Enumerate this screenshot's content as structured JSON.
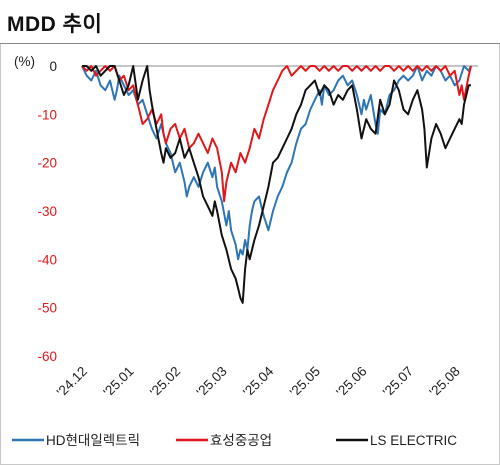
{
  "page": {
    "title": "MDD 추이"
  },
  "chart_data": {
    "type": "line",
    "title": "MDD 추이",
    "ylabel": "(%)",
    "xlabel": "",
    "ylim": [
      -60,
      0
    ],
    "yticks": [
      "0",
      "-10",
      "-20",
      "-30",
      "-40",
      "-50",
      "-60"
    ],
    "ytick_values": [
      0,
      -10,
      -20,
      -30,
      -40,
      -50,
      -60
    ],
    "x_range": [
      0,
      8.5
    ],
    "x_ticks": [
      "'24.12",
      "'25.01",
      "'25.02",
      "'25.03",
      "'25.04",
      "'25.05",
      "'25.06",
      "'25.07",
      "'25.08"
    ],
    "x_tick_values": [
      0,
      1,
      2,
      3,
      4,
      5,
      6,
      7,
      8
    ],
    "grid": false,
    "legend_position": "bottom",
    "series": [
      {
        "name": "HD현대일렉트릭",
        "color": "#2e75b6",
        "points": [
          [
            0,
            0
          ],
          [
            0.1,
            -2
          ],
          [
            0.2,
            -3
          ],
          [
            0.3,
            -1
          ],
          [
            0.4,
            -4
          ],
          [
            0.5,
            -5
          ],
          [
            0.6,
            -3
          ],
          [
            0.7,
            -7
          ],
          [
            0.75,
            -5
          ],
          [
            0.8,
            -2
          ],
          [
            0.9,
            -4
          ],
          [
            1.0,
            -6
          ],
          [
            1.1,
            -5
          ],
          [
            1.2,
            -8
          ],
          [
            1.3,
            -7
          ],
          [
            1.4,
            -10
          ],
          [
            1.5,
            -13
          ],
          [
            1.6,
            -15
          ],
          [
            1.7,
            -12
          ],
          [
            1.75,
            -14
          ],
          [
            1.8,
            -16
          ],
          [
            1.9,
            -18
          ],
          [
            2.0,
            -22
          ],
          [
            2.1,
            -20
          ],
          [
            2.2,
            -24
          ],
          [
            2.25,
            -27
          ],
          [
            2.3,
            -25
          ],
          [
            2.4,
            -23
          ],
          [
            2.5,
            -25
          ],
          [
            2.6,
            -22
          ],
          [
            2.7,
            -20
          ],
          [
            2.8,
            -23
          ],
          [
            2.85,
            -21
          ],
          [
            2.9,
            -25
          ],
          [
            3.0,
            -28
          ],
          [
            3.1,
            -33
          ],
          [
            3.15,
            -30
          ],
          [
            3.2,
            -34
          ],
          [
            3.3,
            -37
          ],
          [
            3.35,
            -40
          ],
          [
            3.4,
            -38
          ],
          [
            3.45,
            -39
          ],
          [
            3.5,
            -36
          ],
          [
            3.55,
            -38
          ],
          [
            3.6,
            -33
          ],
          [
            3.65,
            -30
          ],
          [
            3.7,
            -28
          ],
          [
            3.8,
            -27
          ],
          [
            3.9,
            -31
          ],
          [
            4.0,
            -34
          ],
          [
            4.1,
            -30
          ],
          [
            4.2,
            -27
          ],
          [
            4.3,
            -25
          ],
          [
            4.4,
            -22
          ],
          [
            4.5,
            -20
          ],
          [
            4.6,
            -16
          ],
          [
            4.7,
            -13
          ],
          [
            4.8,
            -12
          ],
          [
            4.9,
            -9
          ],
          [
            5.0,
            -7
          ],
          [
            5.1,
            -5
          ],
          [
            5.15,
            -8
          ],
          [
            5.2,
            -4
          ],
          [
            5.3,
            -6
          ],
          [
            5.4,
            -5
          ],
          [
            5.5,
            -3
          ],
          [
            5.6,
            -2
          ],
          [
            5.7,
            -4
          ],
          [
            5.8,
            -3
          ],
          [
            5.9,
            -6
          ],
          [
            6.0,
            -10
          ],
          [
            6.05,
            -7
          ],
          [
            6.1,
            -9
          ],
          [
            6.2,
            -6
          ],
          [
            6.3,
            -12
          ],
          [
            6.35,
            -14
          ],
          [
            6.4,
            -9
          ],
          [
            6.5,
            -10
          ],
          [
            6.6,
            -6
          ],
          [
            6.7,
            -5
          ],
          [
            6.8,
            -3
          ],
          [
            6.9,
            -2
          ],
          [
            7.0,
            -3
          ],
          [
            7.1,
            -2
          ],
          [
            7.2,
            0
          ],
          [
            7.3,
            -3
          ],
          [
            7.4,
            -1
          ],
          [
            7.5,
            -2
          ],
          [
            7.6,
            0
          ],
          [
            7.7,
            -1
          ],
          [
            7.8,
            -3
          ],
          [
            7.9,
            -2
          ],
          [
            8.0,
            -4
          ],
          [
            8.1,
            -3
          ],
          [
            8.2,
            0
          ],
          [
            8.3,
            -1
          ],
          [
            8.35,
            0
          ]
        ]
      },
      {
        "name": "효성중공업",
        "color": "#e0181b",
        "points": [
          [
            0,
            0
          ],
          [
            0.1,
            -1
          ],
          [
            0.2,
            0
          ],
          [
            0.3,
            -2
          ],
          [
            0.4,
            -1
          ],
          [
            0.5,
            0
          ],
          [
            0.6,
            -1
          ],
          [
            0.7,
            0
          ],
          [
            0.8,
            -3
          ],
          [
            0.9,
            -2
          ],
          [
            1.0,
            -5
          ],
          [
            1.1,
            -4
          ],
          [
            1.2,
            -8
          ],
          [
            1.3,
            -12
          ],
          [
            1.4,
            -11
          ],
          [
            1.5,
            -9
          ],
          [
            1.6,
            -12
          ],
          [
            1.7,
            -10
          ],
          [
            1.75,
            -14
          ],
          [
            1.8,
            -16
          ],
          [
            1.9,
            -13
          ],
          [
            2.0,
            -12
          ],
          [
            2.1,
            -15
          ],
          [
            2.2,
            -13
          ],
          [
            2.3,
            -17
          ],
          [
            2.4,
            -16
          ],
          [
            2.5,
            -14
          ],
          [
            2.6,
            -16
          ],
          [
            2.7,
            -18
          ],
          [
            2.8,
            -15
          ],
          [
            2.9,
            -17
          ],
          [
            3.0,
            -22
          ],
          [
            3.05,
            -28
          ],
          [
            3.1,
            -24
          ],
          [
            3.2,
            -20
          ],
          [
            3.3,
            -22
          ],
          [
            3.4,
            -18
          ],
          [
            3.5,
            -20
          ],
          [
            3.6,
            -17
          ],
          [
            3.7,
            -13
          ],
          [
            3.8,
            -15
          ],
          [
            3.9,
            -11
          ],
          [
            4.0,
            -8
          ],
          [
            4.1,
            -5
          ],
          [
            4.2,
            -3
          ],
          [
            4.3,
            -1
          ],
          [
            4.4,
            0
          ],
          [
            4.5,
            -2
          ],
          [
            4.6,
            -1
          ],
          [
            4.7,
            0
          ],
          [
            4.8,
            -1
          ],
          [
            4.9,
            0
          ],
          [
            5.0,
            0
          ],
          [
            5.1,
            -1
          ],
          [
            5.2,
            0
          ],
          [
            5.3,
            -1
          ],
          [
            5.4,
            0
          ],
          [
            5.5,
            -1
          ],
          [
            5.6,
            0
          ],
          [
            5.7,
            0
          ],
          [
            5.8,
            -1
          ],
          [
            5.9,
            0
          ],
          [
            6.0,
            -1
          ],
          [
            6.1,
            0
          ],
          [
            6.2,
            -1
          ],
          [
            6.3,
            0
          ],
          [
            6.4,
            -1
          ],
          [
            6.5,
            0
          ],
          [
            6.6,
            0
          ],
          [
            6.7,
            -1
          ],
          [
            6.8,
            0
          ],
          [
            6.9,
            -1
          ],
          [
            7.0,
            0
          ],
          [
            7.1,
            -1
          ],
          [
            7.2,
            0
          ],
          [
            7.3,
            -1
          ],
          [
            7.4,
            0
          ],
          [
            7.5,
            -1
          ],
          [
            7.6,
            0
          ],
          [
            7.7,
            -1
          ],
          [
            7.8,
            0
          ],
          [
            7.9,
            -2
          ],
          [
            8.0,
            -1
          ],
          [
            8.1,
            -6
          ],
          [
            8.15,
            -4
          ],
          [
            8.2,
            -7
          ],
          [
            8.3,
            -2
          ],
          [
            8.35,
            0
          ]
        ]
      },
      {
        "name": "LS ELECTRIC",
        "color": "#111111",
        "points": [
          [
            0,
            0
          ],
          [
            0.1,
            0
          ],
          [
            0.2,
            -1
          ],
          [
            0.3,
            0
          ],
          [
            0.4,
            -2
          ],
          [
            0.5,
            -1
          ],
          [
            0.6,
            0
          ],
          [
            0.7,
            0
          ],
          [
            0.8,
            -3
          ],
          [
            0.9,
            -6
          ],
          [
            1.0,
            -4
          ],
          [
            1.1,
            0
          ],
          [
            1.2,
            -7
          ],
          [
            1.3,
            -3
          ],
          [
            1.4,
            0
          ],
          [
            1.45,
            -5
          ],
          [
            1.5,
            -8
          ],
          [
            1.6,
            -13
          ],
          [
            1.7,
            -18
          ],
          [
            1.75,
            -20
          ],
          [
            1.8,
            -17
          ],
          [
            1.9,
            -19
          ],
          [
            2.0,
            -18
          ],
          [
            2.1,
            -15
          ],
          [
            2.2,
            -19
          ],
          [
            2.3,
            -17
          ],
          [
            2.4,
            -20
          ],
          [
            2.5,
            -23
          ],
          [
            2.6,
            -27
          ],
          [
            2.7,
            -29
          ],
          [
            2.8,
            -31
          ],
          [
            2.85,
            -28
          ],
          [
            2.9,
            -30
          ],
          [
            3.0,
            -35
          ],
          [
            3.1,
            -38
          ],
          [
            3.2,
            -42
          ],
          [
            3.3,
            -44
          ],
          [
            3.35,
            -46
          ],
          [
            3.4,
            -48
          ],
          [
            3.45,
            -49
          ],
          [
            3.5,
            -42
          ],
          [
            3.55,
            -38
          ],
          [
            3.6,
            -40
          ],
          [
            3.7,
            -36
          ],
          [
            3.8,
            -33
          ],
          [
            3.9,
            -29
          ],
          [
            4.0,
            -25
          ],
          [
            4.1,
            -20
          ],
          [
            4.2,
            -19
          ],
          [
            4.3,
            -17
          ],
          [
            4.4,
            -15
          ],
          [
            4.5,
            -13
          ],
          [
            4.6,
            -10
          ],
          [
            4.7,
            -8
          ],
          [
            4.8,
            -5
          ],
          [
            4.9,
            -4
          ],
          [
            5.0,
            -3
          ],
          [
            5.1,
            -6
          ],
          [
            5.2,
            -4
          ],
          [
            5.3,
            -5
          ],
          [
            5.4,
            -8
          ],
          [
            5.5,
            -6
          ],
          [
            5.6,
            -7
          ],
          [
            5.7,
            -5
          ],
          [
            5.8,
            -4
          ],
          [
            5.9,
            -9
          ],
          [
            6.0,
            -15
          ],
          [
            6.1,
            -11
          ],
          [
            6.2,
            -13
          ],
          [
            6.3,
            -14
          ],
          [
            6.4,
            -7
          ],
          [
            6.5,
            -10
          ],
          [
            6.6,
            -8
          ],
          [
            6.7,
            -3
          ],
          [
            6.8,
            -5
          ],
          [
            6.9,
            -9
          ],
          [
            7.0,
            -10
          ],
          [
            7.1,
            -7
          ],
          [
            7.2,
            -5
          ],
          [
            7.3,
            -9
          ],
          [
            7.35,
            -13
          ],
          [
            7.4,
            -21
          ],
          [
            7.45,
            -18
          ],
          [
            7.5,
            -15
          ],
          [
            7.6,
            -12
          ],
          [
            7.7,
            -14
          ],
          [
            7.8,
            -17
          ],
          [
            7.9,
            -15
          ],
          [
            8.0,
            -13
          ],
          [
            8.1,
            -11
          ],
          [
            8.15,
            -12
          ],
          [
            8.2,
            -8
          ],
          [
            8.3,
            -4
          ],
          [
            8.35,
            -4
          ]
        ]
      }
    ]
  }
}
